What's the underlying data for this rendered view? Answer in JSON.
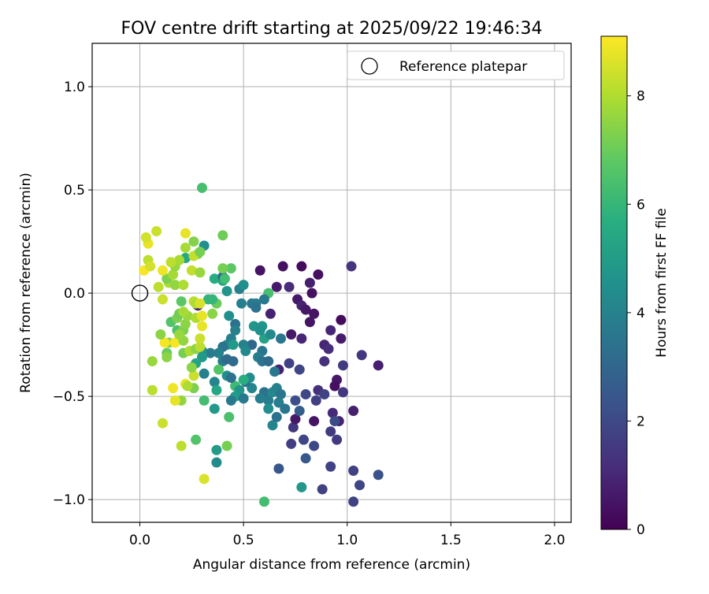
{
  "chart_data": {
    "type": "scatter",
    "title": "FOV centre drift starting at 2025/09/22 19:46:34",
    "xlabel": "Angular distance from reference (arcmin)",
    "ylabel": "Rotation from reference (arcmin)",
    "xlim": [
      -0.23,
      2.08
    ],
    "ylim": [
      -1.11,
      1.21
    ],
    "xticks": [
      0.0,
      0.5,
      1.0,
      1.5,
      2.0
    ],
    "xtick_labels": [
      "0.0",
      "0.5",
      "1.0",
      "1.5",
      "2.0"
    ],
    "yticks": [
      1.0,
      0.5,
      0.0,
      -0.5,
      -1.0
    ],
    "ytick_labels": [
      "1.0",
      "0.5",
      "0.0",
      "−0.5",
      "−1.0"
    ],
    "grid": true,
    "legend": {
      "position": "top-right",
      "entries": [
        {
          "label": "Reference platepar",
          "marker": "open-circle"
        }
      ]
    },
    "reference_point": {
      "x": 0.0,
      "y": 0.0
    },
    "colorbar": {
      "label": "Hours from first FF file",
      "colormap": "viridis",
      "range": [
        0,
        9.1
      ],
      "ticks": [
        0,
        2,
        4,
        6,
        8
      ],
      "tick_labels": [
        "0",
        "2",
        "4",
        "6",
        "8"
      ]
    },
    "points": [
      [
        0.58,
        0.11,
        0.5
      ],
      [
        0.69,
        0.13,
        0.4
      ],
      [
        0.78,
        0.13,
        0.3
      ],
      [
        0.86,
        0.09,
        0.4
      ],
      [
        0.82,
        0.05,
        0.8
      ],
      [
        0.72,
        0.03,
        1.2
      ],
      [
        0.66,
        0.03,
        0.7
      ],
      [
        0.83,
        0.0,
        0.4
      ],
      [
        1.02,
        0.13,
        1.4
      ],
      [
        0.76,
        -0.03,
        0.6
      ],
      [
        0.78,
        -0.06,
        0.9
      ],
      [
        0.8,
        -0.08,
        0.6
      ],
      [
        0.84,
        -0.1,
        0.5
      ],
      [
        0.63,
        -0.1,
        0.9
      ],
      [
        0.82,
        -0.14,
        0.5
      ],
      [
        0.97,
        -0.13,
        0.3
      ],
      [
        0.92,
        -0.18,
        1.0
      ],
      [
        0.73,
        -0.2,
        0.6
      ],
      [
        0.78,
        -0.22,
        1.0
      ],
      [
        0.97,
        -0.22,
        0.7
      ],
      [
        0.89,
        -0.25,
        1.0
      ],
      [
        0.91,
        -0.27,
        1.2
      ],
      [
        1.07,
        -0.3,
        1.5
      ],
      [
        1.15,
        -0.35,
        0.8
      ],
      [
        0.98,
        -0.35,
        1.6
      ],
      [
        0.89,
        -0.33,
        1.3
      ],
      [
        0.72,
        -0.34,
        1.8
      ],
      [
        0.77,
        -0.37,
        1.9
      ],
      [
        0.67,
        -0.37,
        0.9
      ],
      [
        0.95,
        -0.42,
        0.6
      ],
      [
        0.94,
        -0.45,
        0.4
      ],
      [
        0.98,
        -0.48,
        1.5
      ],
      [
        0.86,
        -0.47,
        1.3
      ],
      [
        0.89,
        -0.49,
        1.8
      ],
      [
        0.85,
        -0.52,
        1.7
      ],
      [
        0.8,
        -0.49,
        2.0
      ],
      [
        0.75,
        -0.52,
        2.2
      ],
      [
        0.84,
        -0.62,
        0.5
      ],
      [
        0.93,
        -0.58,
        1.1
      ],
      [
        0.96,
        -0.62,
        0.9
      ],
      [
        1.03,
        -0.57,
        0.8
      ],
      [
        0.94,
        -0.62,
        2.1
      ],
      [
        0.92,
        -0.67,
        1.6
      ],
      [
        0.95,
        -0.71,
        1.6
      ],
      [
        0.74,
        -0.65,
        1.5
      ],
      [
        0.75,
        -0.61,
        0.6
      ],
      [
        0.77,
        -0.57,
        2.7
      ],
      [
        0.73,
        -0.73,
        1.7
      ],
      [
        0.79,
        -0.71,
        1.9
      ],
      [
        0.84,
        -0.74,
        2.0
      ],
      [
        0.8,
        -0.8,
        2.5
      ],
      [
        0.92,
        -0.84,
        1.8
      ],
      [
        1.03,
        -0.86,
        1.8
      ],
      [
        1.06,
        -0.93,
        1.9
      ],
      [
        1.15,
        -0.88,
        2.3
      ],
      [
        0.88,
        -0.95,
        1.8
      ],
      [
        1.03,
        -1.01,
        1.8
      ],
      [
        0.67,
        -0.85,
        2.5
      ],
      [
        0.78,
        -0.94,
        4.8
      ],
      [
        0.6,
        -1.01,
        6.3
      ],
      [
        0.3,
        0.51,
        6.4
      ],
      [
        0.44,
        0.12,
        6.8
      ],
      [
        0.4,
        0.28,
        7.1
      ],
      [
        0.31,
        0.23,
        4.5
      ],
      [
        0.28,
        0.19,
        7.1
      ],
      [
        0.22,
        0.17,
        5.5
      ],
      [
        0.36,
        0.07,
        5.7
      ],
      [
        0.4,
        0.06,
        5.5
      ],
      [
        0.4,
        0.08,
        3.2
      ],
      [
        0.48,
        0.02,
        4.0
      ],
      [
        0.5,
        0.04,
        4.5
      ],
      [
        0.42,
        0.01,
        4.7
      ],
      [
        0.62,
        0.0,
        6.4
      ],
      [
        0.54,
        -0.05,
        3.6
      ],
      [
        0.56,
        -0.05,
        3.8
      ],
      [
        0.56,
        -0.07,
        3.5
      ],
      [
        0.49,
        -0.05,
        3.9
      ],
      [
        0.6,
        -0.03,
        3.7
      ],
      [
        0.33,
        -0.03,
        6.0
      ],
      [
        0.28,
        -0.06,
        0.8
      ],
      [
        0.37,
        -0.05,
        7.0
      ],
      [
        0.43,
        -0.11,
        4.5
      ],
      [
        0.46,
        -0.15,
        3.4
      ],
      [
        0.46,
        -0.18,
        4.0
      ],
      [
        0.44,
        -0.22,
        3.9
      ],
      [
        0.42,
        -0.25,
        4.1
      ],
      [
        0.45,
        -0.25,
        4.9
      ],
      [
        0.4,
        -0.26,
        3.5
      ],
      [
        0.38,
        -0.29,
        4.0
      ],
      [
        0.4,
        -0.33,
        3.8
      ],
      [
        0.45,
        -0.33,
        3.2
      ],
      [
        0.42,
        -0.32,
        3.2
      ],
      [
        0.55,
        -0.16,
        4.8
      ],
      [
        0.59,
        -0.16,
        4.7
      ],
      [
        0.6,
        -0.22,
        5.2
      ],
      [
        0.58,
        -0.18,
        4.6
      ],
      [
        0.63,
        -0.2,
        4.3
      ],
      [
        0.68,
        -0.22,
        3.6
      ],
      [
        0.54,
        -0.25,
        3.1
      ],
      [
        0.59,
        -0.28,
        3.6
      ],
      [
        0.57,
        -0.31,
        3.9
      ],
      [
        0.59,
        -0.33,
        3.5
      ],
      [
        0.62,
        -0.33,
        3.2
      ],
      [
        0.65,
        -0.38,
        3.6
      ],
      [
        0.5,
        -0.25,
        4.0
      ],
      [
        0.51,
        -0.28,
        4.3
      ],
      [
        0.6,
        -0.48,
        3.4
      ],
      [
        0.62,
        -0.52,
        3.8
      ],
      [
        0.64,
        -0.48,
        4.3
      ],
      [
        0.66,
        -0.46,
        4.0
      ],
      [
        0.68,
        -0.49,
        3.6
      ],
      [
        0.62,
        -0.56,
        4.5
      ],
      [
        0.67,
        -0.53,
        3.9
      ],
      [
        0.64,
        -0.64,
        4.2
      ],
      [
        0.66,
        -0.6,
        3.4
      ],
      [
        0.7,
        -0.56,
        3.6
      ],
      [
        0.58,
        -0.51,
        3.9
      ],
      [
        0.54,
        -0.46,
        4.2
      ],
      [
        0.51,
        -0.43,
        3.4
      ],
      [
        0.53,
        -0.41,
        4.4
      ],
      [
        0.5,
        -0.42,
        5.7
      ],
      [
        0.46,
        -0.45,
        6.2
      ],
      [
        0.48,
        -0.47,
        4.8
      ],
      [
        0.46,
        -0.5,
        5.0
      ],
      [
        0.44,
        -0.52,
        3.7
      ],
      [
        0.5,
        -0.51,
        3.7
      ],
      [
        0.36,
        -0.43,
        4.1
      ],
      [
        0.31,
        -0.39,
        4.0
      ],
      [
        0.42,
        -0.4,
        4.5
      ],
      [
        0.44,
        -0.41,
        3.4
      ],
      [
        0.37,
        -0.47,
        5.4
      ],
      [
        0.36,
        -0.56,
        4.9
      ],
      [
        0.31,
        -0.52,
        6.3
      ],
      [
        0.34,
        -0.29,
        3.8
      ],
      [
        0.3,
        -0.28,
        4.5
      ],
      [
        0.3,
        -0.31,
        4.9
      ],
      [
        0.27,
        -0.34,
        5.3
      ],
      [
        0.38,
        -0.37,
        6.6
      ],
      [
        0.43,
        -0.6,
        6.5
      ],
      [
        0.37,
        -0.76,
        5.0
      ],
      [
        0.37,
        -0.82,
        4.4
      ],
      [
        0.27,
        -0.71,
        6.6
      ],
      [
        0.42,
        -0.74,
        7.2
      ],
      [
        0.31,
        -0.9,
        8.6
      ],
      [
        0.2,
        -0.74,
        8.2
      ],
      [
        0.11,
        -0.63,
        8.4
      ],
      [
        0.06,
        -0.47,
        8.2
      ],
      [
        0.2,
        -0.52,
        7.6
      ],
      [
        0.17,
        -0.52,
        8.8
      ],
      [
        0.22,
        -0.44,
        8.8
      ],
      [
        0.26,
        -0.46,
        7.3
      ],
      [
        0.26,
        -0.4,
        8.4
      ],
      [
        0.23,
        -0.45,
        8.0
      ],
      [
        0.25,
        -0.36,
        7.5
      ],
      [
        0.16,
        -0.46,
        8.9
      ],
      [
        0.13,
        -0.29,
        7.0
      ],
      [
        0.13,
        -0.31,
        7.5
      ],
      [
        0.06,
        -0.33,
        7.7
      ],
      [
        0.14,
        -0.24,
        7.3
      ],
      [
        0.17,
        -0.24,
        9.0
      ],
      [
        0.12,
        -0.24,
        9.0
      ],
      [
        0.21,
        -0.23,
        7.6
      ],
      [
        0.21,
        -0.29,
        7.2
      ],
      [
        0.24,
        -0.28,
        8.0
      ],
      [
        0.27,
        -0.27,
        7.5
      ],
      [
        0.29,
        -0.26,
        8.2
      ],
      [
        0.29,
        -0.22,
        8.4
      ],
      [
        0.18,
        -0.18,
        6.5
      ],
      [
        0.21,
        -0.18,
        7.3
      ],
      [
        0.22,
        -0.15,
        7.5
      ],
      [
        0.15,
        -0.14,
        6.6
      ],
      [
        0.18,
        -0.12,
        7.3
      ],
      [
        0.19,
        -0.1,
        7.1
      ],
      [
        0.23,
        -0.11,
        7.7
      ],
      [
        0.21,
        -0.09,
        7.9
      ],
      [
        0.27,
        -0.12,
        8.0
      ],
      [
        0.3,
        -0.11,
        8.8
      ],
      [
        0.2,
        -0.04,
        6.8
      ],
      [
        0.26,
        -0.04,
        8.2
      ],
      [
        0.27,
        -0.05,
        8.0
      ],
      [
        0.29,
        -0.05,
        8.6
      ],
      [
        0.3,
        -0.16,
        8.8
      ],
      [
        0.1,
        -0.2,
        7.5
      ],
      [
        0.19,
        -0.2,
        7.7
      ],
      [
        0.35,
        -0.1,
        7.5
      ],
      [
        0.11,
        -0.03,
        8.4
      ],
      [
        0.09,
        0.03,
        8.2
      ],
      [
        0.14,
        0.05,
        8.0
      ],
      [
        0.17,
        0.04,
        7.6
      ],
      [
        0.13,
        0.07,
        7.3
      ],
      [
        0.16,
        0.09,
        7.9
      ],
      [
        0.11,
        0.11,
        8.9
      ],
      [
        0.17,
        0.13,
        7.7
      ],
      [
        0.19,
        0.16,
        7.9
      ],
      [
        0.22,
        0.22,
        7.9
      ],
      [
        0.26,
        0.18,
        8.3
      ],
      [
        0.26,
        0.25,
        7.4
      ],
      [
        0.29,
        0.2,
        7.2
      ],
      [
        0.22,
        0.29,
        8.8
      ],
      [
        0.15,
        0.15,
        8.2
      ],
      [
        0.04,
        0.16,
        8.2
      ],
      [
        0.04,
        0.24,
        8.8
      ],
      [
        0.03,
        0.27,
        8.5
      ],
      [
        0.08,
        0.3,
        8.4
      ],
      [
        0.02,
        0.11,
        9.0
      ],
      [
        0.05,
        0.13,
        8.5
      ],
      [
        0.21,
        0.04,
        8.0
      ],
      [
        0.25,
        0.11,
        8.3
      ],
      [
        0.29,
        0.1,
        7.7
      ],
      [
        0.4,
        0.12,
        7.2
      ],
      [
        0.41,
        0.07,
        6.3
      ],
      [
        0.35,
        -0.03,
        6.0
      ]
    ]
  }
}
